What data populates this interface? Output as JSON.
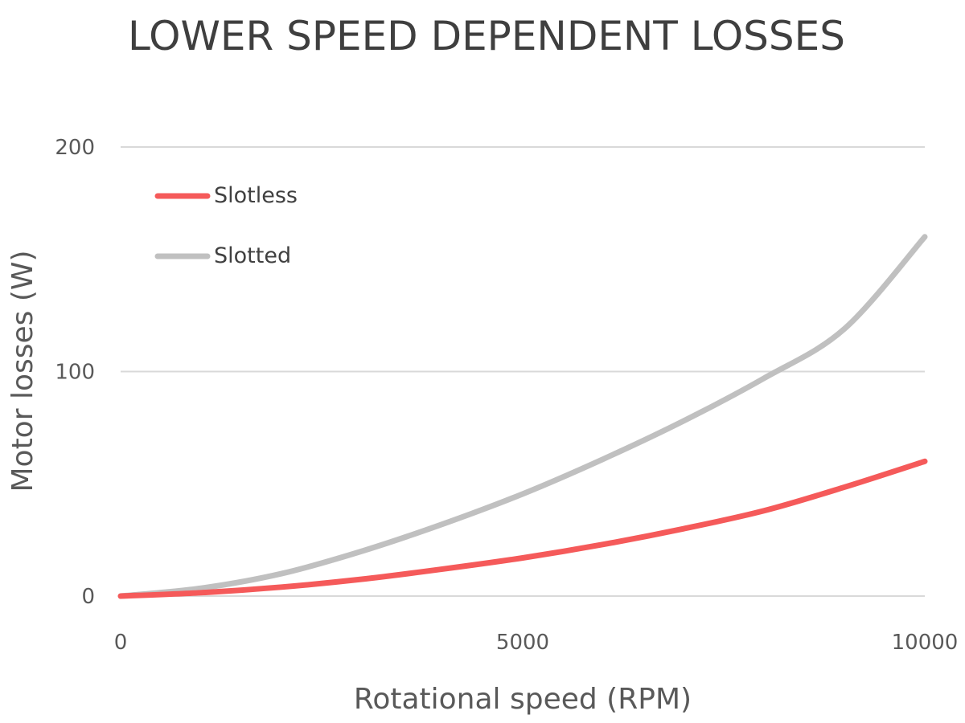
{
  "chart_data": {
    "type": "line",
    "title": "LOWER SPEED DEPENDENT LOSSES",
    "xlabel": "Rotational speed (RPM)",
    "ylabel": "Motor losses (W)",
    "xlim": [
      0,
      10000
    ],
    "ylim": [
      0,
      200
    ],
    "x_ticks": [
      "0",
      "5000",
      "10000"
    ],
    "y_ticks": [
      "0",
      "100",
      "200"
    ],
    "grid": true,
    "legend_position": "top-left",
    "x": [
      0,
      1000,
      2000,
      3000,
      4000,
      5000,
      6000,
      7000,
      8000,
      9000,
      10000
    ],
    "series": [
      {
        "name": "Slotless",
        "color": "#f55a5a",
        "values": [
          0,
          1.5,
          4,
          7.5,
          12,
          17,
          23,
          30,
          38,
          48.5,
          60
        ]
      },
      {
        "name": "Slotted",
        "color": "#c0c0c0",
        "values": [
          0,
          3.5,
          10,
          20,
          32,
          45.5,
          61,
          78,
          97,
          119,
          160
        ]
      }
    ]
  }
}
